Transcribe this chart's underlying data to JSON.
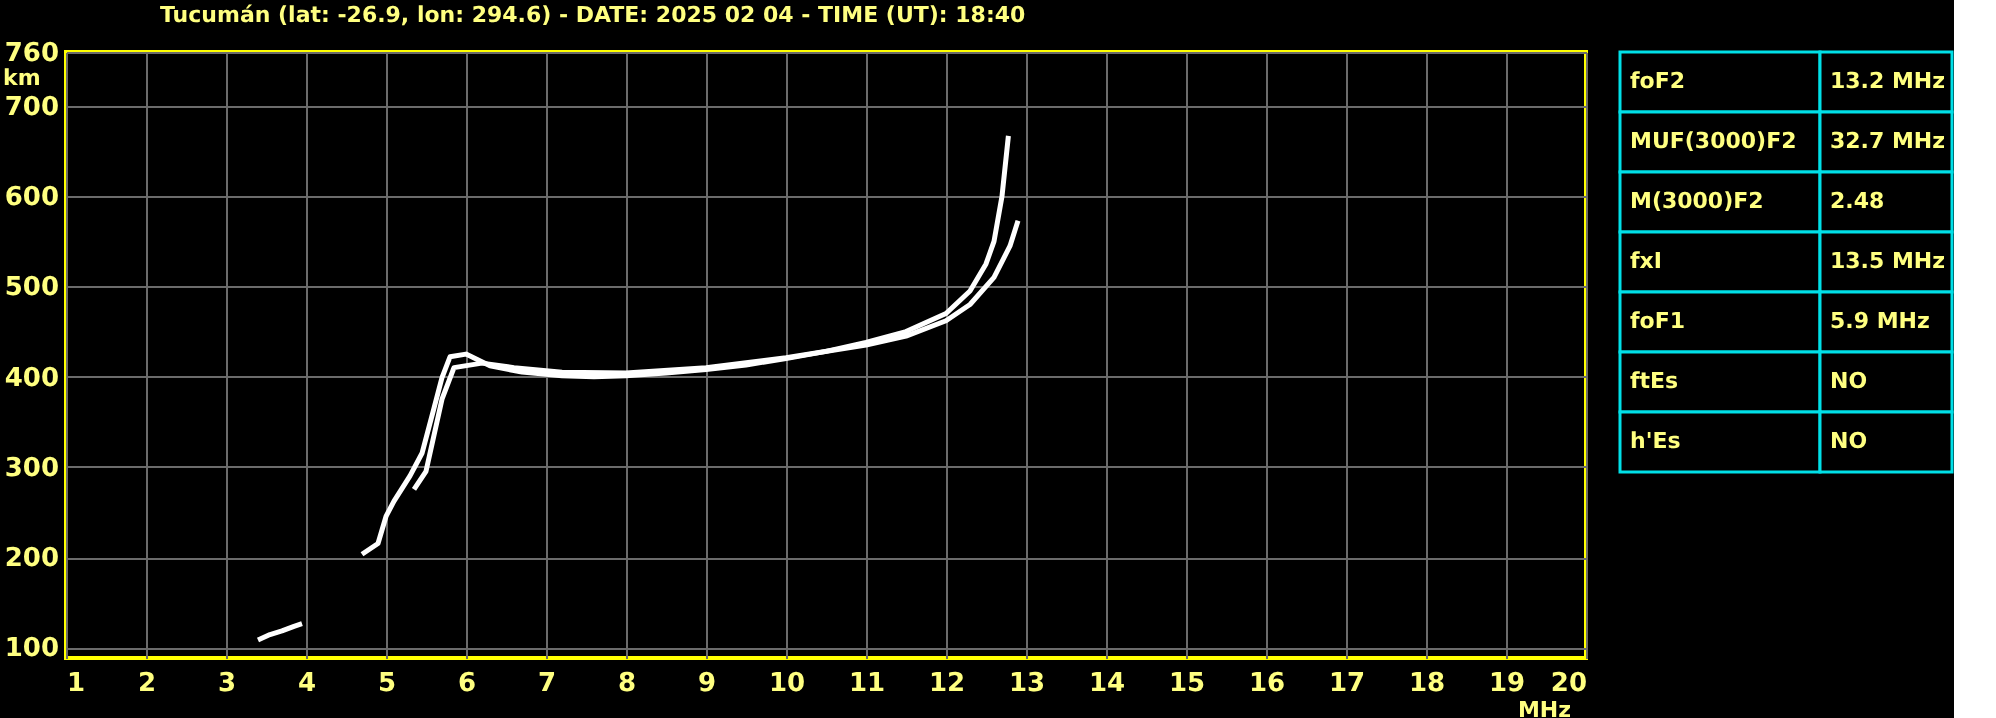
{
  "chart_data": [
    {
      "type": "line",
      "title": "Tucumán (lat: -26.9, lon: 294.6) - DATE: 2025 02 04 - TIME (UT): 18:40",
      "xlabel": "MHz",
      "ylabel": "km",
      "xlim": [
        1,
        20
      ],
      "xticks": [
        1,
        2,
        3,
        4,
        5,
        6,
        7,
        8,
        9,
        10,
        11,
        12,
        13,
        14,
        15,
        16,
        17,
        18,
        19,
        20
      ],
      "ylim": [
        88,
        760
      ],
      "yticks": [
        100,
        200,
        300,
        400,
        500,
        600,
        700,
        760
      ],
      "grid": true,
      "line_style": "solid",
      "marker": "none",
      "series": [
        {
          "color": "#ffffff",
          "x": [
            4.7,
            4.9,
            5.0,
            5.1,
            5.3,
            5.45,
            5.6,
            5.7,
            5.8,
            6.0,
            6.3,
            6.7,
            7.2,
            7.6,
            8.0,
            8.5,
            9.0,
            9.5,
            10.0,
            10.5,
            11.0,
            11.5,
            12.0,
            12.3,
            12.5,
            12.6,
            12.7,
            12.78
          ],
          "values": [
            203,
            215,
            245,
            262,
            290,
            315,
            365,
            399,
            422,
            425,
            412,
            405,
            401,
            400,
            401,
            404,
            408,
            413,
            420,
            428,
            438,
            450,
            470,
            495,
            525,
            550,
            600,
            667
          ]
        },
        {
          "color": "#ffffff",
          "x": [
            5.35,
            5.5,
            5.6,
            5.7,
            5.85,
            6.2,
            6.6,
            7.2,
            8.0,
            9.0,
            10.0,
            11.0,
            11.5,
            12.0,
            12.3,
            12.6,
            12.8,
            12.9
          ],
          "values": [
            275,
            295,
            335,
            375,
            410,
            415,
            410,
            405,
            404,
            410,
            421,
            435,
            445,
            462,
            480,
            510,
            545,
            573
          ]
        },
        {
          "color": "#ffffff",
          "x": [
            3.4,
            3.55,
            3.7,
            3.85,
            3.95
          ],
          "values": [
            108,
            114,
            118,
            123,
            126
          ]
        }
      ]
    },
    {
      "type": "other",
      "annotations": [
        "foF2",
        "13.2 MHz",
        "MUF(3000)F2",
        "32.7 MHz",
        "M(3000)F2",
        "2.48",
        "fxI",
        "13.5 MHz",
        "foF1",
        "5.9 MHz",
        "ftEs",
        "NO",
        "h'Es",
        "NO"
      ]
    }
  ]
}
